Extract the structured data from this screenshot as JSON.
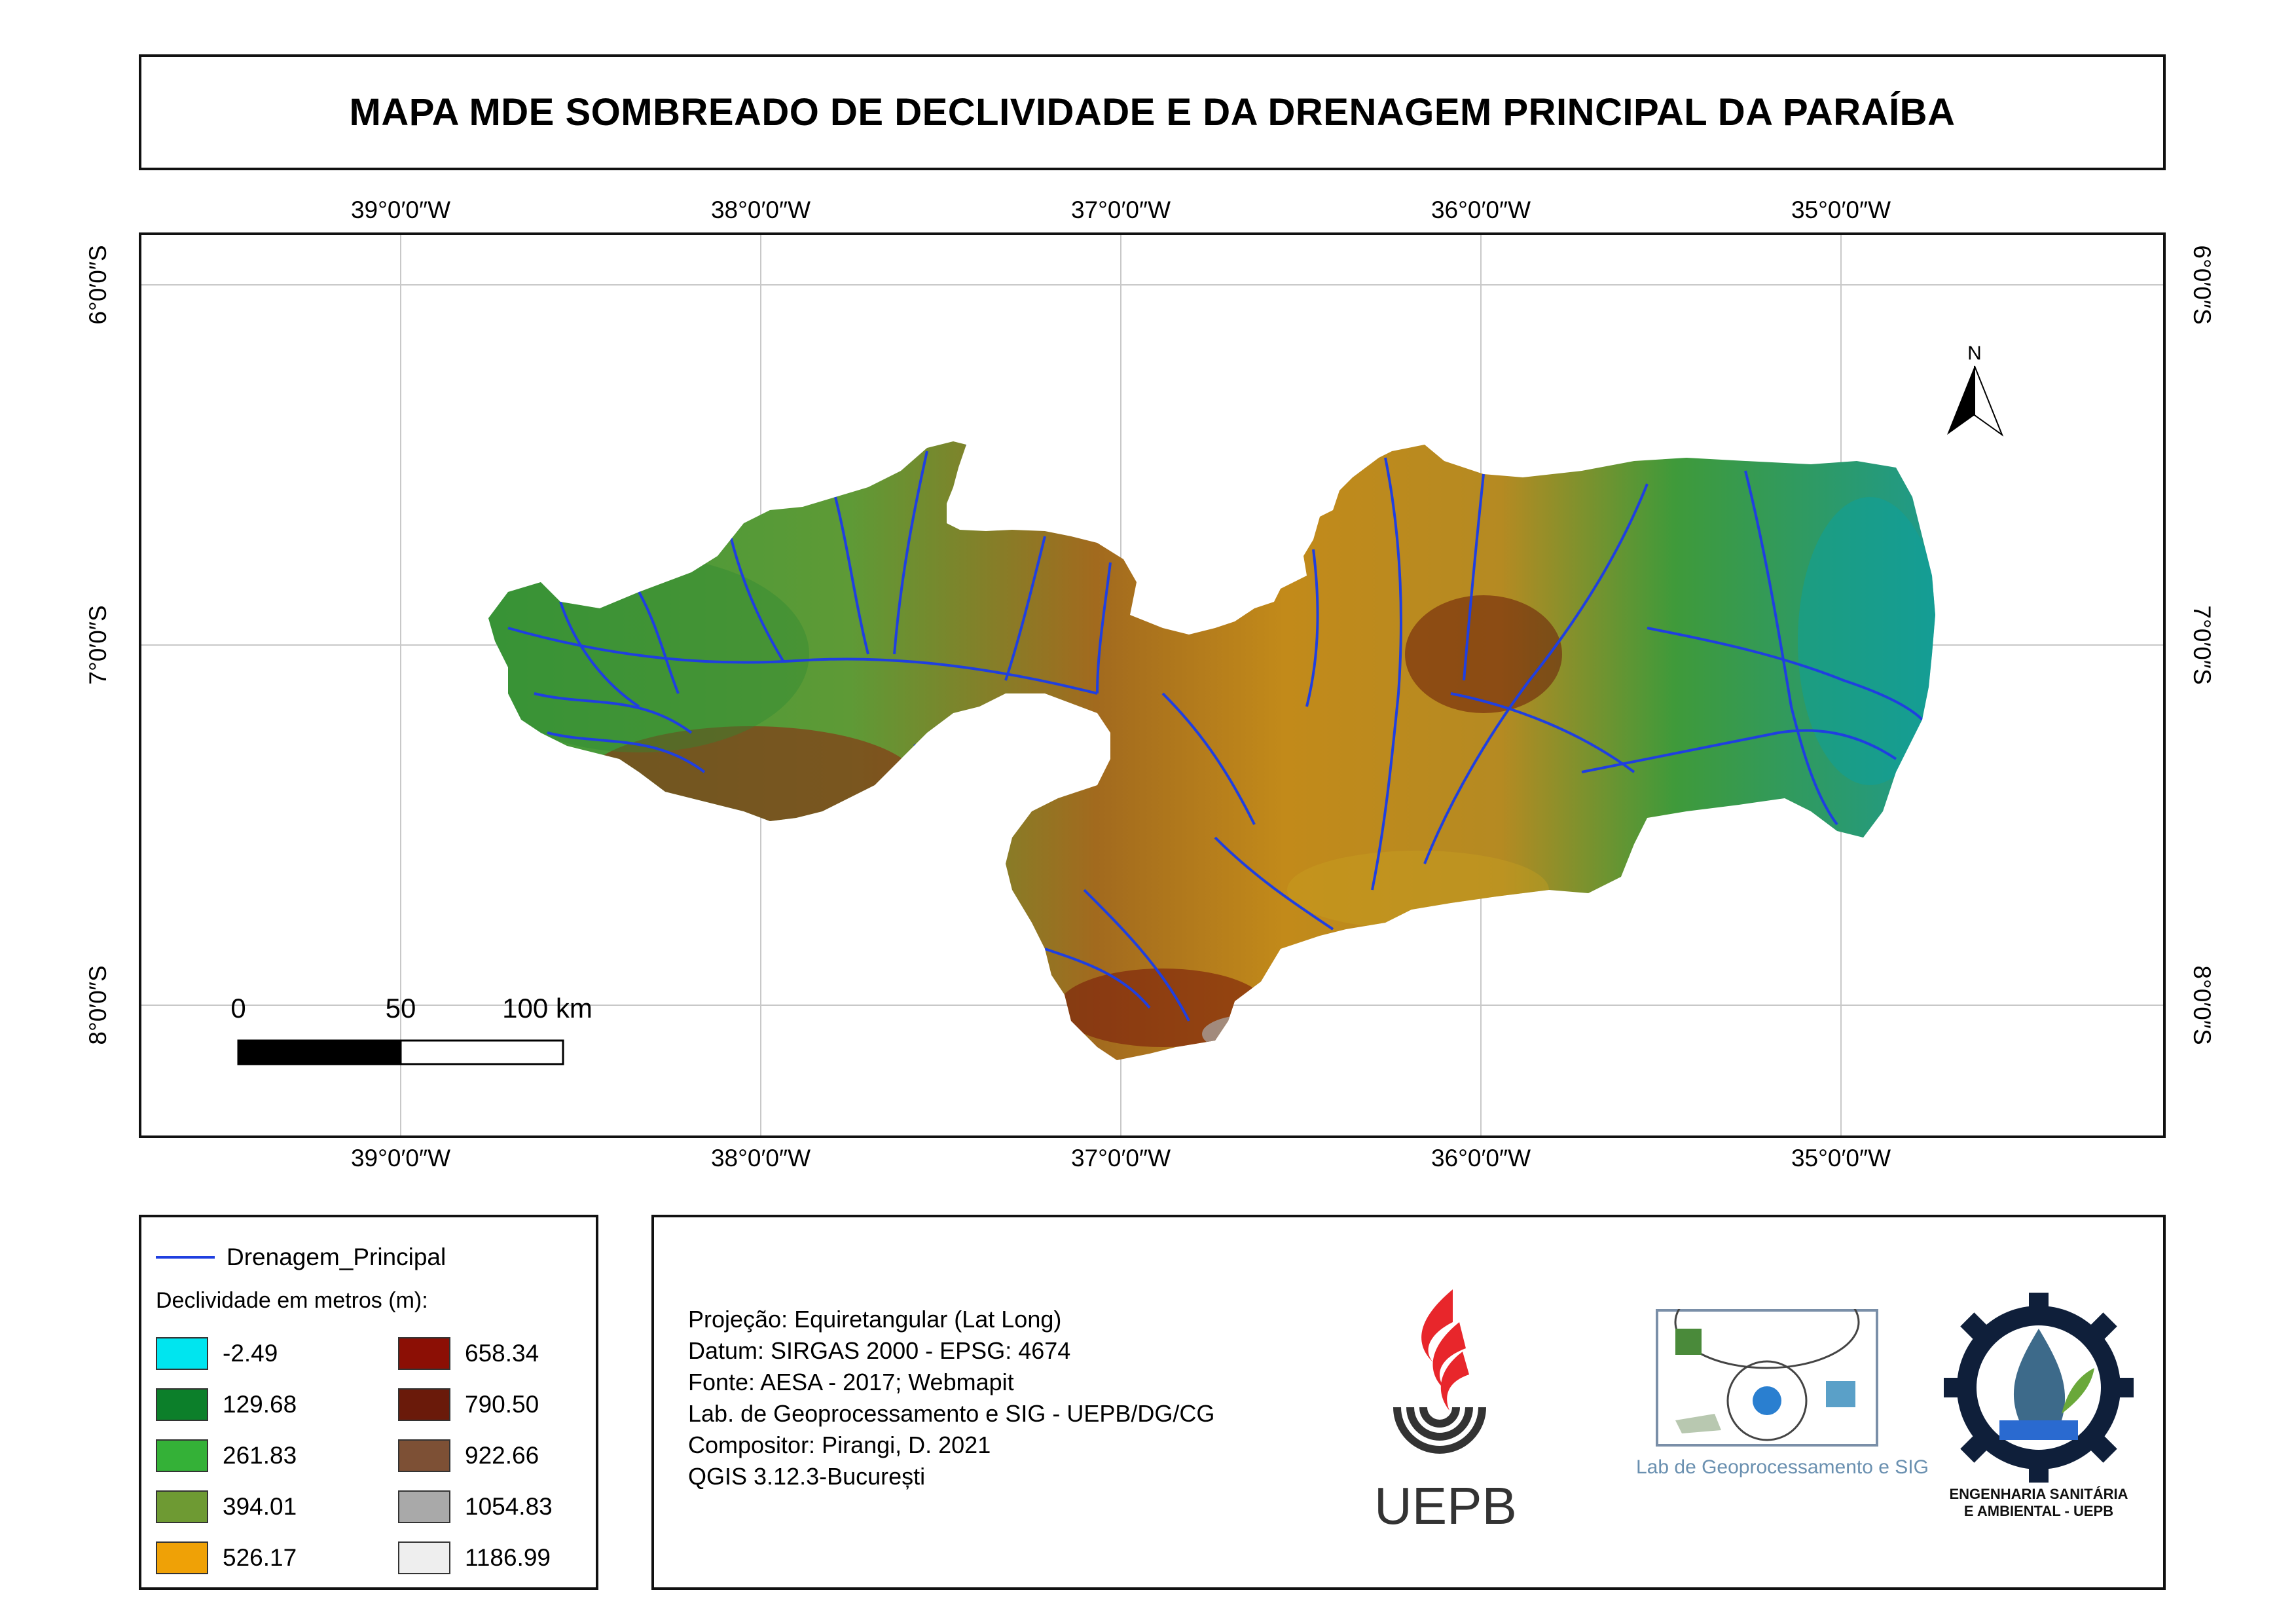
{
  "title": "MAPA MDE SOMBREADO DE DECLIVIDADE E DA DRENAGEM PRINCIPAL DA PARAÍBA",
  "grid": {
    "longitudes": [
      "39°0′0″W",
      "38°0′0″W",
      "37°0′0″W",
      "36°0′0″W",
      "35°0′0″W"
    ],
    "latitudes": [
      "6°0′0″S",
      "7°0′0″S",
      "8°0′0″S"
    ]
  },
  "north_arrow": {
    "label": "N"
  },
  "scale_bar": {
    "labels": [
      "0",
      "50",
      "100 km"
    ]
  },
  "legend": {
    "line_label": "Drenagem_Principal",
    "line_color": "#1f3fe0",
    "title": "Declividade em metros (m):",
    "classes": [
      {
        "value": "-2.49",
        "color": "#00e5ef"
      },
      {
        "value": "129.68",
        "color": "#0c7f2a"
      },
      {
        "value": "261.83",
        "color": "#34b137"
      },
      {
        "value": "394.01",
        "color": "#6e9a33"
      },
      {
        "value": "526.17",
        "color": "#efa106"
      },
      {
        "value": "658.34",
        "color": "#8c0f05"
      },
      {
        "value": "790.50",
        "color": "#6a1a0a"
      },
      {
        "value": "922.66",
        "color": "#7d5035"
      },
      {
        "value": "1054.83",
        "color": "#a9a9a9"
      },
      {
        "value": "1186.99",
        "color": "#eeeeee"
      }
    ]
  },
  "info": {
    "lines": [
      "Projeção: Equiretangular (Lat Long)",
      "Datum: SIRGAS 2000 - EPSG: 4674",
      "Fonte: AESA - 2017; Webmapit",
      "Lab. de Geoprocessamento e SIG - UEPB/DG/CG",
      "Compositor: Pirangi, D. 2021",
      "QGIS 3.12.3-București"
    ]
  },
  "logos": {
    "uepb": "UEPB",
    "lab": "Lab de Geoprocessamento e SIG",
    "eng_line1": "ENGENHARIA SANITÁRIA",
    "eng_line2": "E AMBIENTAL - UEPB"
  }
}
